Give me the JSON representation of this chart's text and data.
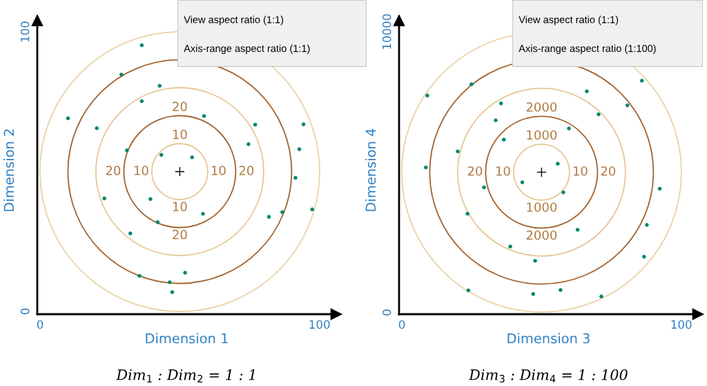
{
  "chart_data": [
    {
      "type": "scatter",
      "xlabel": "Dimension 1",
      "ylabel": "Dimension 2",
      "xlim": [
        -1,
        106
      ],
      "ylim": [
        -1,
        102
      ],
      "xticks": [
        0,
        100
      ],
      "yticks": [
        0,
        100
      ],
      "annotations": [
        "View aspect ratio (1:1)",
        "Axis-range aspect ratio (1:1)",
        "20",
        "10",
        "20",
        "10",
        "10",
        "20",
        "10",
        "20",
        "Dim$_{1}$ : Dim$_{2}$ = 1 : 1"
      ],
      "series": [
        {
          "marker": "circle",
          "color": "#00876c",
          "x": [
            36.4,
            29.1,
            42.8,
            36.4,
            10.0,
            20.3,
            58.7,
            77.0,
            94.3,
            74.6,
            92.8,
            31.1,
            43.4,
            54.4,
            91.4,
            23.0,
            39.5,
            58.3,
            97.4,
            81.9,
            86.7,
            42.1,
            32.3,
            35.6,
            51.9,
            46.4,
            47.3
          ],
          "values": [
            95.2,
            84.7,
            80.7,
            75.2,
            69.1,
            65.5,
            69.9,
            66.8,
            66.9,
            59.8,
            58.0,
            57.6,
            56.0,
            55.1,
            47.8,
            40.4,
            40.2,
            34.9,
            36.5,
            33.8,
            35.5,
            31.9,
            27.9,
            12.7,
            13.8,
            10.4,
            6.9
          ]
        },
        {
          "marker": "cross",
          "color": "#000000",
          "x": [
            50
          ],
          "values": [
            50
          ]
        }
      ]
    },
    {
      "type": "scatter",
      "xlabel": "Dimension 3",
      "ylabel": "Dimension 4",
      "xlim": [
        -1,
        106
      ],
      "ylim": [
        -60,
        10200
      ],
      "xticks": [
        0,
        100
      ],
      "yticks": [
        0,
        10000
      ],
      "annotations": [
        "View aspect ratio (1:1)",
        "Axis-range aspect ratio (1:100)",
        "2000",
        "1000",
        "20",
        "10",
        "10",
        "20",
        "1000",
        "2000",
        "Dim$_{3}$ : Dim$_{4}$ = 1 : 100"
      ],
      "series": [
        {
          "marker": "circle",
          "color": "#00876c",
          "x": [
            9.1,
            24.9,
            35.5,
            33.6,
            66.2,
            85.9,
            80.7,
            70.4,
            59.8,
            36.5,
            20.0,
            8.6,
            55.8,
            43.1,
            29.4,
            57.8,
            92.3,
            23.5,
            62.9,
            87.7,
            38.8,
            47.7,
            86.7,
            23.8,
            47.0,
            56.8,
            71.4
          ],
          "values": [
            7730,
            8130,
            7450,
            6850,
            7880,
            8260,
            7380,
            7060,
            6560,
            6160,
            5740,
            5170,
            5300,
            4640,
            4460,
            4280,
            4410,
            3520,
            2950,
            3120,
            2350,
            1840,
            1990,
            790,
            660,
            800,
            570
          ]
        },
        {
          "marker": "cross",
          "color": "#000000",
          "x": [
            50
          ],
          "values": [
            5000
          ]
        }
      ]
    }
  ]
}
